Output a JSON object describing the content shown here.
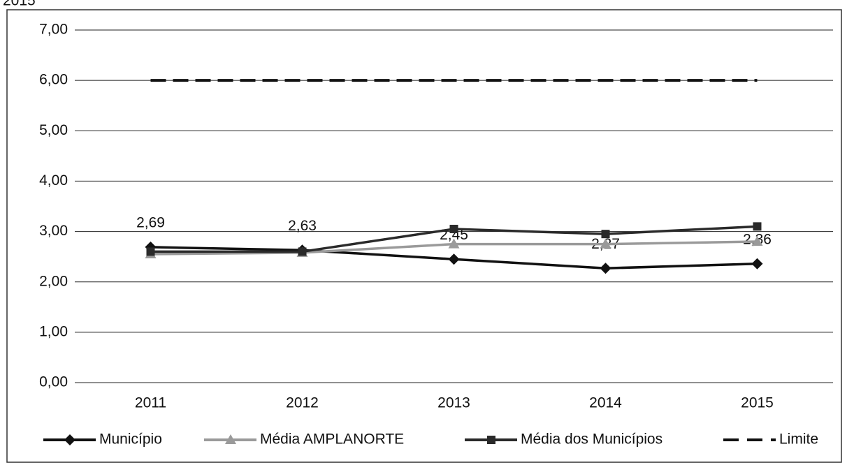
{
  "chart_data": {
    "type": "line",
    "title": "2015",
    "categories": [
      "2011",
      "2012",
      "2013",
      "2014",
      "2015"
    ],
    "series": [
      {
        "name": "Município",
        "color": "#111111",
        "marker": "diamond",
        "values": [
          2.69,
          2.63,
          2.45,
          2.27,
          2.36
        ],
        "value_labels": [
          "2,69",
          "2,63",
          "2,45",
          "2,27",
          "2,36"
        ]
      },
      {
        "name": "Média AMPLANORTE",
        "color": "#9a9a9a",
        "marker": "triangle",
        "values": [
          2.55,
          2.58,
          2.75,
          2.75,
          2.8
        ]
      },
      {
        "name": "Média dos Municípios",
        "color": "#2a2a2a",
        "marker": "square",
        "values": [
          2.6,
          2.6,
          3.05,
          2.95,
          3.1
        ]
      },
      {
        "name": "Limite",
        "color": "#111111",
        "dashed": true,
        "values": [
          6,
          6,
          6,
          6,
          6
        ]
      }
    ],
    "ylim": [
      0,
      7
    ],
    "yticks": [
      {
        "value": 0,
        "label": "0,00"
      },
      {
        "value": 1,
        "label": "1,00"
      },
      {
        "value": 2,
        "label": "2,00"
      },
      {
        "value": 3,
        "label": "3,00"
      },
      {
        "value": 4,
        "label": "4,00"
      },
      {
        "value": 5,
        "label": "5,00"
      },
      {
        "value": 6,
        "label": "6,00"
      },
      {
        "value": 7,
        "label": "7,00"
      }
    ],
    "grid": true,
    "legend": "bottom"
  }
}
